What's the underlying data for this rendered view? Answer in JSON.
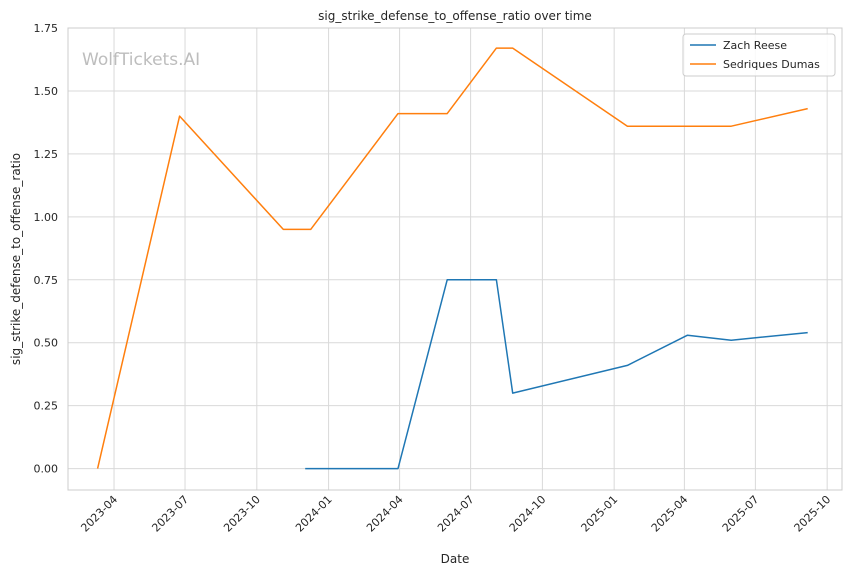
{
  "chart_data": {
    "type": "line",
    "title": "sig_strike_defense_to_offense_ratio over time",
    "xlabel": "Date",
    "ylabel": "sig_strike_defense_to_offense_ratio",
    "watermark": "WolfTickets.AI",
    "ylim": [
      -0.085,
      1.75
    ],
    "xlim": [
      "2023-02-01",
      "2025-10-20"
    ],
    "grid": true,
    "legend_position": "top-right",
    "x_tick_labels": [
      "2023-04",
      "2023-07",
      "2023-10",
      "2024-01",
      "2024-04",
      "2024-07",
      "2024-10",
      "2025-01",
      "2025-04",
      "2025-07",
      "2025-10"
    ],
    "x_tick_dates": [
      "2023-04-01",
      "2023-07-01",
      "2023-10-01",
      "2024-01-01",
      "2024-04-01",
      "2024-07-01",
      "2024-10-01",
      "2025-01-01",
      "2025-04-01",
      "2025-07-01",
      "2025-10-01"
    ],
    "y_tick_labels": [
      "0.00",
      "0.25",
      "0.50",
      "0.75",
      "1.00",
      "1.25",
      "1.50",
      "1.75"
    ],
    "y_ticks": [
      0,
      0.25,
      0.5,
      0.75,
      1.0,
      1.25,
      1.5,
      1.75
    ],
    "series": [
      {
        "name": "Zach Reese",
        "color": "#1f77b4",
        "x": [
          "2023-12-02",
          "2024-03-30",
          "2024-06-01",
          "2024-08-03",
          "2024-08-24",
          "2025-01-18",
          "2025-04-05",
          "2025-05-31",
          "2025-09-06"
        ],
        "values": [
          0.0,
          0.0,
          0.75,
          0.75,
          0.3,
          0.41,
          0.53,
          0.51,
          0.54
        ]
      },
      {
        "name": "Sedriques Dumas",
        "color": "#ff7f0e",
        "x": [
          "2023-03-11",
          "2023-06-24",
          "2023-11-04",
          "2023-12-09",
          "2024-03-30",
          "2024-06-01",
          "2024-08-03",
          "2024-08-24",
          "2025-01-18",
          "2025-04-05",
          "2025-05-31",
          "2025-09-06"
        ],
        "values": [
          0.0,
          1.4,
          0.95,
          0.95,
          1.41,
          1.41,
          1.67,
          1.67,
          1.36,
          1.36,
          1.36,
          1.43
        ]
      }
    ]
  }
}
